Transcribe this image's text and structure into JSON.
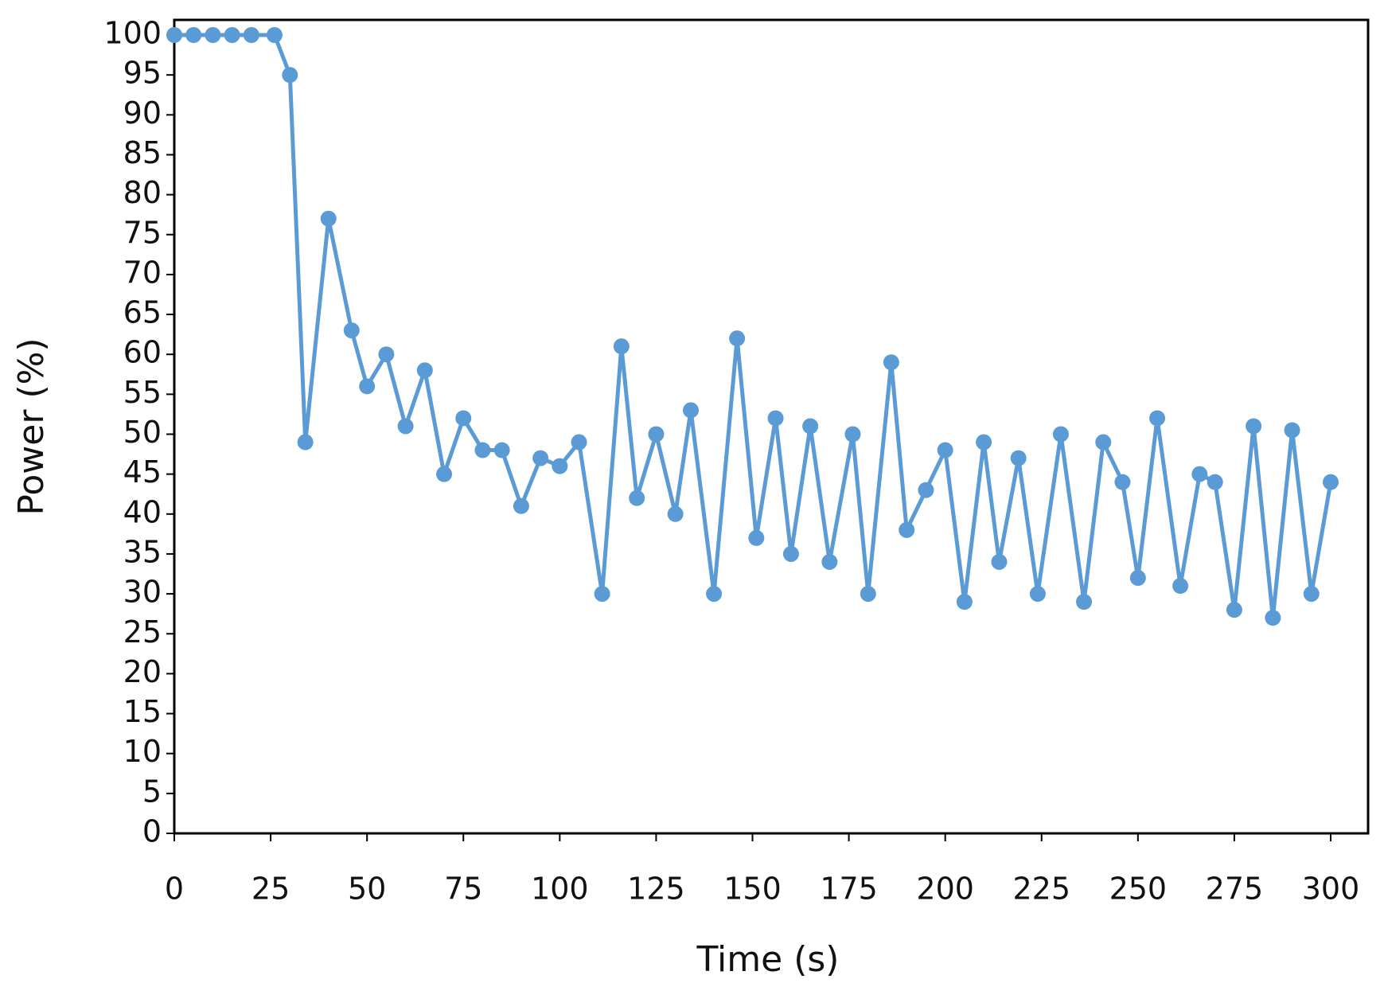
{
  "chart_data": {
    "type": "line",
    "x_label": "Time (s)",
    "y_label": "Power (%)",
    "series": [
      {
        "name": "Power",
        "color": "#5b9bd5",
        "x": [
          0,
          5,
          10,
          15,
          20,
          26,
          30,
          34,
          40,
          46,
          50,
          55,
          60,
          65,
          70,
          75,
          80,
          85,
          90,
          95,
          100,
          105,
          111,
          116,
          120,
          125,
          130,
          134,
          140,
          146,
          151,
          156,
          160,
          165,
          170,
          176,
          180,
          186,
          190,
          195,
          200,
          205,
          210,
          214,
          219,
          224,
          230,
          236,
          241,
          246,
          250,
          255,
          261,
          266,
          270,
          275,
          280,
          285,
          290,
          295,
          300
        ],
        "values": [
          100,
          100,
          100,
          100,
          100,
          100,
          95,
          49,
          77,
          63,
          56,
          60,
          51,
          58,
          45,
          52,
          48,
          48,
          41,
          47,
          46,
          49,
          30,
          61,
          42,
          50,
          40,
          53,
          30,
          62,
          37,
          52,
          35,
          51,
          34,
          50,
          30,
          59,
          38,
          43,
          48,
          29,
          49,
          34,
          47,
          30,
          50,
          29,
          49,
          44,
          32,
          52,
          31,
          45,
          44,
          28,
          51,
          27,
          50.5,
          30,
          44
        ]
      }
    ],
    "xlim": [
      0,
      300
    ],
    "xticks": [
      0,
      25,
      50,
      75,
      100,
      125,
      150,
      175,
      200,
      225,
      250,
      275,
      300
    ],
    "ylim": [
      0,
      100
    ],
    "yticks": [
      0,
      5,
      10,
      15,
      20,
      25,
      30,
      35,
      40,
      45,
      50,
      55,
      60,
      65,
      70,
      75,
      80,
      85,
      90,
      95,
      100
    ],
    "grid": false
  }
}
